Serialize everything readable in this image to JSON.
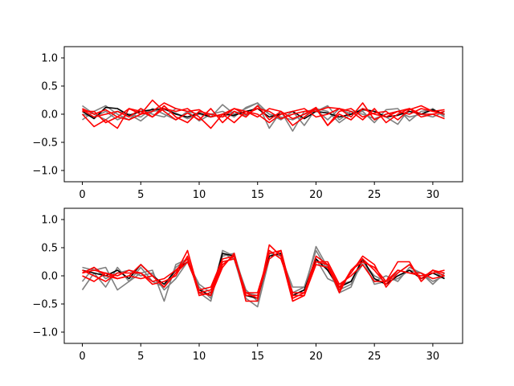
{
  "chart_data": [
    {
      "type": "line",
      "title": "",
      "xlabel": "",
      "ylabel": "",
      "xlim": [
        -1.55,
        32.55
      ],
      "ylim": [
        -1.2,
        1.2
      ],
      "xticks": [
        0,
        5,
        10,
        15,
        20,
        25,
        30
      ],
      "yticks": [
        -1.0,
        -0.5,
        0.0,
        0.5,
        1.0
      ],
      "xtick_labels": [
        "0",
        "5",
        "10",
        "15",
        "20",
        "25",
        "30"
      ],
      "ytick_labels": [
        "−1.0",
        "−0.5",
        "0.0",
        "0.5",
        "1.0"
      ],
      "grid": false,
      "x": [
        0,
        1,
        2,
        3,
        4,
        5,
        6,
        7,
        8,
        9,
        10,
        11,
        12,
        13,
        14,
        15,
        16,
        17,
        18,
        19,
        20,
        21,
        22,
        23,
        24,
        25,
        26,
        27,
        28,
        29,
        30,
        31
      ],
      "series": [
        {
          "color": "#808080",
          "values": [
            0.15,
            0.0,
            -0.1,
            0.05,
            0.0,
            -0.12,
            0.05,
            0.08,
            0.02,
            -0.08,
            0.0,
            -0.05,
            0.17,
            0.0,
            0.1,
            0.2,
            -0.25,
            0.05,
            -0.3,
            0.05,
            0.08,
            -0.1,
            0.1,
            0.0,
            0.05,
            -0.15,
            0.08,
            0.1,
            -0.12,
            0.05,
            0.08,
            -0.02
          ]
        },
        {
          "color": "#808080",
          "values": [
            -0.1,
            0.05,
            0.15,
            0.0,
            -0.1,
            0.1,
            0.0,
            -0.05,
            0.1,
            0.05,
            -0.12,
            0.0,
            0.05,
            -0.05,
            0.12,
            0.2,
            0.0,
            -0.1,
            0.05,
            -0.2,
            0.1,
            0.05,
            -0.15,
            0.0,
            0.1,
            0.05,
            -0.05,
            -0.18,
            0.1,
            0.0,
            -0.05,
            0.05
          ]
        },
        {
          "color": "#808080",
          "values": [
            0.0,
            -0.05,
            0.05,
            -0.1,
            0.0,
            -0.05,
            0.1,
            0.0,
            -0.1,
            0.05,
            0.0,
            0.0,
            -0.05,
            0.05,
            -0.02,
            0.15,
            0.0,
            -0.05,
            -0.1,
            0.0,
            0.05,
            0.15,
            -0.1,
            0.05,
            0.0,
            -0.08,
            0.0,
            0.05,
            -0.05,
            0.0,
            0.1,
            -0.05
          ]
        },
        {
          "color": "#000000",
          "values": [
            0.05,
            -0.08,
            0.12,
            0.1,
            -0.02,
            0.05,
            0.08,
            0.1,
            0.0,
            -0.05,
            0.02,
            -0.05,
            0.0,
            -0.02,
            0.05,
            0.1,
            -0.05,
            0.0,
            0.05,
            -0.08,
            0.05,
            0.02,
            -0.05,
            0.0,
            0.08,
            0.05,
            -0.05,
            -0.02,
            0.05,
            0.0,
            0.08,
            0.0
          ]
        },
        {
          "color": "#ff0000",
          "values": [
            0.1,
            0.0,
            0.08,
            -0.05,
            -0.1,
            0.0,
            0.05,
            0.2,
            0.1,
            0.05,
            0.08,
            -0.05,
            0.0,
            0.1,
            0.05,
            -0.05,
            0.1,
            0.05,
            -0.08,
            0.0,
            0.12,
            -0.2,
            0.0,
            -0.1,
            0.1,
            0.0,
            -0.05,
            0.05,
            0.0,
            0.1,
            0.05,
            0.08
          ]
        },
        {
          "color": "#ff0000",
          "values": [
            0.0,
            -0.22,
            -0.1,
            -0.25,
            0.1,
            0.0,
            0.25,
            0.05,
            -0.1,
            0.02,
            -0.1,
            0.1,
            -0.15,
            0.05,
            -0.05,
            0.15,
            -0.1,
            0.05,
            -0.2,
            -0.05,
            0.1,
            -0.2,
            0.05,
            0.1,
            -0.05,
            0.02,
            0.05,
            -0.1,
            0.08,
            0.15,
            0.05,
            0.0
          ]
        },
        {
          "color": "#ff0000",
          "values": [
            0.05,
            0.05,
            -0.15,
            -0.05,
            0.1,
            0.05,
            -0.05,
            0.15,
            -0.05,
            -0.15,
            0.05,
            0.0,
            -0.05,
            0.1,
            0.0,
            0.1,
            0.05,
            -0.08,
            0.0,
            0.05,
            0.05,
            0.12,
            0.1,
            -0.05,
            0.2,
            -0.1,
            0.0,
            0.05,
            0.1,
            -0.05,
            0.0,
            0.05
          ]
        },
        {
          "color": "#ff0000",
          "values": [
            0.08,
            -0.05,
            0.0,
            0.05,
            -0.05,
            0.1,
            -0.05,
            0.1,
            0.05,
            0.1,
            -0.05,
            -0.25,
            0.0,
            -0.15,
            0.05,
            0.0,
            -0.15,
            0.0,
            0.05,
            0.1,
            -0.05,
            0.0,
            0.1,
            0.05,
            -0.1,
            0.1,
            -0.15,
            0.0,
            0.1,
            0.0,
            0.0,
            -0.08
          ]
        }
      ]
    },
    {
      "type": "line",
      "title": "",
      "xlabel": "",
      "ylabel": "",
      "xlim": [
        -1.55,
        32.55
      ],
      "ylim": [
        -1.2,
        1.2
      ],
      "xticks": [
        0,
        5,
        10,
        15,
        20,
        25,
        30
      ],
      "yticks": [
        -1.0,
        -0.5,
        0.0,
        0.5,
        1.0
      ],
      "xtick_labels": [
        "0",
        "5",
        "10",
        "15",
        "20",
        "25",
        "30"
      ],
      "ytick_labels": [
        "−1.0",
        "−0.5",
        "0.0",
        "0.5",
        "1.0"
      ],
      "grid": false,
      "x": [
        0,
        1,
        2,
        3,
        4,
        5,
        6,
        7,
        8,
        9,
        10,
        11,
        12,
        13,
        14,
        15,
        16,
        17,
        18,
        19,
        20,
        21,
        22,
        23,
        24,
        25,
        26,
        27,
        28,
        29,
        30,
        31
      ],
      "series": [
        {
          "color": "#808080",
          "values": [
            -0.25,
            0.05,
            -0.2,
            0.15,
            -0.1,
            0.05,
            0.1,
            -0.45,
            0.2,
            0.3,
            -0.3,
            -0.45,
            0.4,
            0.3,
            -0.4,
            -0.55,
            0.3,
            0.45,
            -0.35,
            -0.25,
            0.52,
            0.15,
            -0.3,
            -0.2,
            0.3,
            -0.15,
            -0.1,
            0.05,
            0.2,
            -0.05,
            0.1,
            -0.05
          ]
        },
        {
          "color": "#808080",
          "values": [
            0.15,
            0.1,
            0.15,
            -0.25,
            -0.1,
            0.15,
            -0.1,
            -0.2,
            0.15,
            0.3,
            -0.2,
            -0.4,
            0.45,
            0.35,
            -0.25,
            -0.45,
            0.4,
            0.35,
            -0.2,
            -0.2,
            0.3,
            -0.05,
            -0.15,
            -0.1,
            0.2,
            -0.1,
            0.0,
            -0.1,
            0.15,
            0.05,
            -0.15,
            0.05
          ]
        },
        {
          "color": "#808080",
          "values": [
            -0.1,
            0.15,
            -0.05,
            0.05,
            0.1,
            0.0,
            0.05,
            -0.25,
            -0.05,
            0.25,
            -0.15,
            -0.3,
            0.35,
            0.4,
            -0.3,
            -0.35,
            0.35,
            0.4,
            -0.3,
            -0.2,
            0.45,
            0.1,
            -0.25,
            -0.15,
            0.25,
            0.0,
            -0.1,
            -0.05,
            0.1,
            0.05,
            -0.1,
            0.0
          ]
        },
        {
          "color": "#000000",
          "values": [
            0.1,
            0.05,
            0.0,
            0.1,
            -0.05,
            0.2,
            0.0,
            -0.15,
            0.1,
            0.25,
            -0.25,
            -0.35,
            0.4,
            0.35,
            -0.35,
            -0.4,
            0.35,
            0.4,
            -0.35,
            -0.25,
            0.3,
            0.1,
            -0.2,
            -0.1,
            0.3,
            -0.05,
            -0.15,
            0.0,
            0.1,
            -0.05,
            0.05,
            -0.05
          ]
        },
        {
          "color": "#ff0000",
          "values": [
            0.05,
            0.1,
            0.05,
            -0.05,
            0.0,
            0.2,
            0.0,
            -0.2,
            0.05,
            0.45,
            -0.3,
            -0.35,
            0.15,
            0.4,
            -0.45,
            -0.45,
            0.55,
            0.35,
            -0.45,
            -0.35,
            0.25,
            0.2,
            -0.2,
            0.05,
            0.35,
            0.2,
            -0.2,
            0.05,
            0.2,
            -0.05,
            0.1,
            0.05
          ]
        },
        {
          "color": "#ff0000",
          "values": [
            0.0,
            -0.1,
            0.05,
            0.0,
            0.1,
            0.05,
            -0.1,
            -0.05,
            0.1,
            0.3,
            -0.3,
            -0.25,
            0.25,
            0.3,
            -0.3,
            -0.3,
            0.4,
            0.45,
            -0.35,
            -0.35,
            0.2,
            0.15,
            -0.25,
            0.1,
            0.25,
            0.15,
            -0.1,
            0.25,
            0.25,
            -0.1,
            0.1,
            0.0
          ]
        },
        {
          "color": "#ff0000",
          "values": [
            0.1,
            0.0,
            -0.1,
            0.05,
            0.05,
            0.05,
            -0.15,
            -0.1,
            0.0,
            0.35,
            -0.35,
            -0.3,
            0.2,
            0.35,
            -0.35,
            -0.35,
            0.3,
            0.45,
            -0.4,
            -0.3,
            0.35,
            0.2,
            -0.3,
            0.1,
            0.3,
            0.1,
            -0.15,
            0.1,
            0.05,
            0.0,
            0.05,
            0.1
          ]
        },
        {
          "color": "#ff0000",
          "values": [
            0.05,
            0.15,
            0.0,
            -0.05,
            0.0,
            -0.05,
            0.0,
            -0.2,
            0.05,
            0.25,
            -0.25,
            -0.2,
            0.3,
            0.35,
            -0.3,
            -0.4,
            0.45,
            0.3,
            -0.3,
            -0.3,
            0.25,
            0.25,
            -0.15,
            0.0,
            0.2,
            -0.1,
            -0.1,
            0.1,
            0.05,
            0.05,
            -0.05,
            0.0
          ]
        }
      ]
    }
  ]
}
